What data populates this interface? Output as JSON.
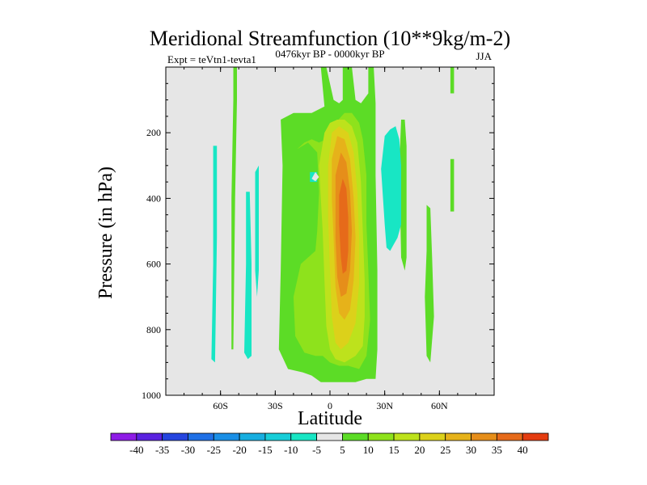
{
  "chart_data": {
    "type": "heatmap",
    "title": "Meridional Streamfunction (10**9kg/m-2)",
    "left_label": "Expt = teVtn1-tevta1",
    "center_label": "0476kyr BP - 0000kyr BP",
    "right_label": "JJA",
    "xlabel": "Latitude",
    "ylabel": "Pressure (in hPa)",
    "xlim": [
      -90,
      90
    ],
    "ylim": [
      1000,
      0
    ],
    "x_ticks": [
      {
        "value": -60,
        "label": "60S"
      },
      {
        "value": -30,
        "label": "30S"
      },
      {
        "value": 0,
        "label": "0"
      },
      {
        "value": 30,
        "label": "30N"
      },
      {
        "value": 60,
        "label": "60N"
      }
    ],
    "y_ticks": [
      {
        "value": 200,
        "label": "200"
      },
      {
        "value": 400,
        "label": "400"
      },
      {
        "value": 600,
        "label": "600"
      },
      {
        "value": 800,
        "label": "800"
      },
      {
        "value": 1000,
        "label": "1000"
      }
    ],
    "background_color": "#e6e6e6",
    "colorbar": {
      "labels": [
        "-40",
        "-35",
        "-30",
        "-25",
        "-20",
        "-15",
        "-10",
        "-5",
        "5",
        "10",
        "15",
        "20",
        "25",
        "30",
        "35",
        "40"
      ],
      "colors": [
        "#8e1ce6",
        "#5a22e0",
        "#2545df",
        "#1f70e6",
        "#1a8fe6",
        "#17aee0",
        "#17cdd8",
        "#18e6c4",
        "#e6e6e6",
        "#5cdc26",
        "#8ee21c",
        "#bde21c",
        "#dcd11a",
        "#e6b21a",
        "#e68e1a",
        "#e66a1a",
        "#e43c10"
      ]
    },
    "contours": [
      {
        "level": "5 to 10",
        "color": "#5cdc26",
        "polygons": [
          [
            [
              -53,
              0
            ],
            [
              -51,
              0
            ],
            [
              -51,
              100
            ],
            [
              -52,
              400
            ],
            [
              -53,
              860
            ],
            [
              -54,
              860
            ],
            [
              -54,
              400
            ],
            [
              -53,
              100
            ]
          ],
          [
            [
              -9,
              0
            ],
            [
              -5,
              0
            ],
            [
              -3,
              120
            ],
            [
              -10,
              140
            ],
            [
              -20,
              140
            ],
            [
              -27,
              160
            ],
            [
              -26,
              300
            ],
            [
              -27,
              620
            ],
            [
              -28,
              860
            ],
            [
              -23,
              920
            ],
            [
              -15,
              930
            ],
            [
              -10,
              940
            ],
            [
              -5,
              960
            ],
            [
              0,
              960
            ],
            [
              8,
              960
            ],
            [
              14,
              960
            ],
            [
              20,
              950
            ],
            [
              25,
              950
            ],
            [
              26,
              860
            ],
            [
              26,
              620
            ],
            [
              25,
              330
            ],
            [
              25,
              110
            ],
            [
              24,
              0
            ],
            [
              21,
              0
            ],
            [
              21,
              80
            ],
            [
              17,
              110
            ],
            [
              14,
              100
            ],
            [
              12,
              0
            ],
            [
              7,
              0
            ],
            [
              7,
              100
            ],
            [
              5,
              110
            ],
            [
              2,
              100
            ],
            [
              -2,
              0
            ]
          ],
          [
            [
              39,
              160
            ],
            [
              41,
              160
            ],
            [
              42,
              240
            ],
            [
              42,
              580
            ],
            [
              41,
              620
            ],
            [
              39,
              580
            ],
            [
              38,
              300
            ]
          ],
          [
            [
              53,
              420
            ],
            [
              55,
              430
            ],
            [
              56,
              580
            ],
            [
              57,
              760
            ],
            [
              55,
              900
            ],
            [
              53,
              880
            ],
            [
              52,
              700
            ],
            [
              53,
              560
            ]
          ],
          [
            [
              66,
              0
            ],
            [
              68,
              0
            ],
            [
              68,
              80
            ],
            [
              66,
              80
            ]
          ],
          [
            [
              66,
              280
            ],
            [
              68,
              280
            ],
            [
              68,
              440
            ],
            [
              66,
              440
            ]
          ]
        ]
      },
      {
        "level": "10 to 15",
        "color": "#8ee21c",
        "polygons": [
          [
            [
              -18,
              250
            ],
            [
              -12,
              230
            ],
            [
              -7,
              260
            ],
            [
              -6,
              380
            ],
            [
              -7,
              500
            ],
            [
              -8,
              560
            ],
            [
              -16,
              600
            ],
            [
              -20,
              700
            ],
            [
              -19,
              820
            ],
            [
              -14,
              870
            ],
            [
              -8,
              880
            ],
            [
              -4,
              880
            ],
            [
              0,
              900
            ],
            [
              5,
              910
            ],
            [
              10,
              910
            ],
            [
              16,
              920
            ],
            [
              20,
              880
            ],
            [
              22,
              770
            ],
            [
              21,
              620
            ],
            [
              20,
              480
            ],
            [
              20,
              330
            ],
            [
              18,
              220
            ],
            [
              16,
              170
            ],
            [
              12,
              140
            ],
            [
              8,
              140
            ],
            [
              3,
              170
            ],
            [
              -2,
              220
            ],
            [
              -6,
              230
            ],
            [
              -10,
              220
            ],
            [
              -14,
              230
            ]
          ]
        ]
      },
      {
        "level": "15 to 20",
        "color": "#bde21c",
        "polygons": [
          [
            [
              -6,
              300
            ],
            [
              -3,
              200
            ],
            [
              0,
              170
            ],
            [
              4,
              160
            ],
            [
              8,
              160
            ],
            [
              12,
              180
            ],
            [
              15,
              230
            ],
            [
              17,
              350
            ],
            [
              18,
              500
            ],
            [
              19,
              650
            ],
            [
              19,
              760
            ],
            [
              18,
              850
            ],
            [
              14,
              880
            ],
            [
              8,
              900
            ],
            [
              3,
              890
            ],
            [
              0,
              860
            ],
            [
              -2,
              790
            ],
            [
              -3,
              650
            ],
            [
              -4,
              500
            ],
            [
              -5,
              400
            ]
          ]
        ]
      },
      {
        "level": "20 to 25",
        "color": "#dcd11a",
        "polygons": [
          [
            [
              -1,
              300
            ],
            [
              1,
              200
            ],
            [
              5,
              180
            ],
            [
              10,
              200
            ],
            [
              13,
              260
            ],
            [
              15,
              380
            ],
            [
              16,
              520
            ],
            [
              16,
              660
            ],
            [
              14,
              780
            ],
            [
              10,
              840
            ],
            [
              6,
              860
            ],
            [
              3,
              840
            ],
            [
              1,
              760
            ],
            [
              0,
              620
            ],
            [
              -1,
              460
            ]
          ]
        ]
      },
      {
        "level": "25 to 30",
        "color": "#e6b21a",
        "polygons": [
          [
            [
              1,
              280
            ],
            [
              4,
              210
            ],
            [
              8,
              220
            ],
            [
              11,
              280
            ],
            [
              13,
              400
            ],
            [
              14,
              520
            ],
            [
              13,
              650
            ],
            [
              11,
              740
            ],
            [
              8,
              770
            ],
            [
              5,
              750
            ],
            [
              3,
              670
            ],
            [
              2,
              520
            ],
            [
              1,
              400
            ]
          ]
        ]
      },
      {
        "level": "30 to 35",
        "color": "#e68e1a",
        "polygons": [
          [
            [
              3,
              330
            ],
            [
              6,
              260
            ],
            [
              9,
              290
            ],
            [
              11,
              380
            ],
            [
              12,
              500
            ],
            [
              11,
              620
            ],
            [
              9,
              690
            ],
            [
              6,
              700
            ],
            [
              4,
              640
            ],
            [
              3,
              520
            ],
            [
              3,
              420
            ]
          ]
        ]
      },
      {
        "level": "35 to 40",
        "color": "#e66a1a",
        "polygons": [
          [
            [
              5,
              390
            ],
            [
              7,
              340
            ],
            [
              9,
              370
            ],
            [
              10,
              460
            ],
            [
              10,
              560
            ],
            [
              9,
              620
            ],
            [
              7,
              630
            ],
            [
              6,
              580
            ],
            [
              5,
              480
            ]
          ]
        ]
      },
      {
        "level": "-10 to -5",
        "color": "#18e6c4",
        "polygons": [
          [
            [
              -64,
              240
            ],
            [
              -62,
              240
            ],
            [
              -62,
              520
            ],
            [
              -63,
              900
            ],
            [
              -65,
              890
            ],
            [
              -64,
              600
            ]
          ],
          [
            [
              -46,
              380
            ],
            [
              -44,
              380
            ],
            [
              -43,
              600
            ],
            [
              -43,
              880
            ],
            [
              -45,
              890
            ],
            [
              -47,
              870
            ],
            [
              -46,
              600
            ]
          ],
          [
            [
              -41,
              320
            ],
            [
              -39,
              300
            ],
            [
              -39,
              620
            ],
            [
              -40,
              700
            ],
            [
              -41,
              620
            ]
          ],
          [
            [
              -11,
              320
            ],
            [
              -7,
              320
            ],
            [
              -7,
              350
            ],
            [
              -11,
              350
            ]
          ],
          [
            [
              28,
              310
            ],
            [
              30,
              210
            ],
            [
              33,
              190
            ],
            [
              36,
              180
            ],
            [
              38,
              220
            ],
            [
              39,
              300
            ],
            [
              39,
              480
            ],
            [
              37,
              520
            ],
            [
              35,
              540
            ],
            [
              33,
              560
            ],
            [
              31,
              550
            ],
            [
              30,
              480
            ]
          ]
        ]
      },
      {
        "level": "0 to 5 (background)",
        "color": "#e6e6e6",
        "polygons": [
          [
            [
              -10,
              340
            ],
            [
              -8,
              320
            ],
            [
              -6,
              335
            ],
            [
              -8,
              348
            ]
          ]
        ]
      }
    ]
  }
}
